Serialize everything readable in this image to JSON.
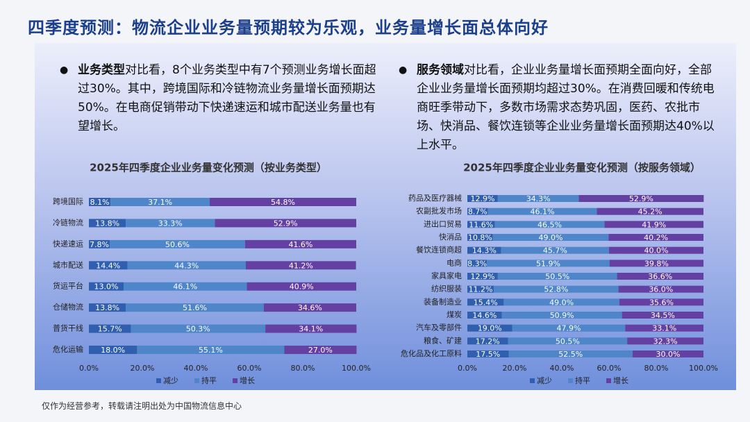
{
  "header": {
    "title": "四季度预测：物流企业业务量预期较为乐观，业务量增长面总体向好"
  },
  "bullets": [
    {
      "bold": "业务类型",
      "text": "对比看，8个业务类型中有7个预测业务增长面超过30%。其中，跨境国际和冷链物流业务量增长面预期达50%。在电商促销带动下快递速运和城市配送业务量也有望增长。"
    },
    {
      "bold": "服务领域",
      "text": "对比看，企业业务量增长面预期全面向好，全部企业业务量增长面预期均超过30%。在消费回暖和传统电商旺季带动下，多数市场需求态势巩固，医药、农批市场、快消品、餐饮连锁等企业业务量增长面预期达40%以上水平。"
    }
  ],
  "footer": "仅作为经营参考，转载请注明出处为中国物流信息中心",
  "chart_data": [
    {
      "type": "stacked-barh",
      "title": "2025年四季度企业业务量变化预测（按业务类型）",
      "categories": [
        "跨境国际",
        "冷链物流",
        "快递速运",
        "城市配送",
        "货运平台",
        "仓储物流",
        "普货干线",
        "危化运输"
      ],
      "series": [
        {
          "name": "减少",
          "color": "#2f5fae",
          "values": [
            8.1,
            13.8,
            7.8,
            14.4,
            13.0,
            13.8,
            15.7,
            18.0
          ],
          "value_labels": [
            "8.1%",
            "13.8%",
            "7.8%",
            "14.4%",
            "13.0%",
            "13.8%",
            "15.7%",
            "18.0%"
          ]
        },
        {
          "name": "持平",
          "color": "#4f86c9",
          "values": [
            37.1,
            33.3,
            50.6,
            44.3,
            46.1,
            51.6,
            50.3,
            55.1
          ],
          "value_labels": [
            "37.1%",
            "33.3%",
            "50.6%",
            "44.3%",
            "46.1%",
            "51.6%",
            "50.3%",
            "55.1%"
          ]
        },
        {
          "name": "增长",
          "color": "#6540a3",
          "values": [
            54.8,
            52.9,
            41.6,
            41.2,
            40.9,
            34.6,
            34.1,
            27.0
          ],
          "value_labels": [
            "54.8%",
            "52.9%",
            "41.6%",
            "41.2%",
            "40.9%",
            "34.6%",
            "34.1%",
            "27.0%"
          ]
        }
      ],
      "xlim": [
        0,
        100
      ],
      "xticks": [
        {
          "value": 0,
          "label": "0.0%"
        },
        {
          "value": 20,
          "label": "20.0%"
        },
        {
          "value": 40,
          "label": "40.0%"
        },
        {
          "value": 60,
          "label": "60.0%"
        },
        {
          "value": 80,
          "label": "80.0%"
        },
        {
          "value": 100,
          "label": "100.0%"
        }
      ]
    },
    {
      "type": "stacked-barh",
      "title": "2025年四季度企业业务量变化预测（按服务领域）",
      "categories": [
        "药品及医疗器械",
        "农副批发市场",
        "进出口贸易",
        "快消品",
        "餐饮连锁商超",
        "电商",
        "家具家电",
        "纺织服装",
        "装备制造业",
        "煤炭",
        "汽车及零部件",
        "粮食、矿建",
        "危化品及化工原料"
      ],
      "series": [
        {
          "name": "减少",
          "color": "#2f5fae",
          "values": [
            12.9,
            8.7,
            11.6,
            10.8,
            14.3,
            8.3,
            12.9,
            11.2,
            15.4,
            14.6,
            19.0,
            17.2,
            17.5
          ],
          "value_labels": [
            "12.9%",
            "8.7%",
            "11.6%",
            "10.8%",
            "14.3%",
            "8.3%",
            "12.9%",
            "11.2%",
            "15.4%",
            "14.6%",
            "19.0%",
            "17.2%",
            "17.5%"
          ]
        },
        {
          "name": "持平",
          "color": "#4f86c9",
          "values": [
            34.3,
            46.1,
            46.5,
            49.0,
            45.7,
            51.9,
            50.5,
            52.8,
            49.0,
            50.9,
            47.9,
            50.5,
            52.5
          ],
          "value_labels": [
            "34.3%",
            "46.1%",
            "46.5%",
            "49.0%",
            "45.7%",
            "51.9%",
            "50.5%",
            "52.8%",
            "49.0%",
            "50.9%",
            "47.9%",
            "50.5%",
            "52.5%"
          ]
        },
        {
          "name": "增长",
          "color": "#6540a3",
          "values": [
            52.9,
            45.2,
            41.9,
            40.2,
            40.0,
            39.8,
            36.6,
            36.0,
            35.6,
            34.5,
            33.1,
            32.3,
            30.0
          ],
          "value_labels": [
            "52.9%",
            "45.2%",
            "41.9%",
            "40.2%",
            "40.0%",
            "39.8%",
            "36.6%",
            "36.0%",
            "35.6%",
            "34.5%",
            "33.1%",
            "32.3%",
            "30.0%"
          ]
        }
      ],
      "xlim": [
        0,
        100
      ],
      "xticks": [
        {
          "value": 0,
          "label": "0.0%"
        },
        {
          "value": 20,
          "label": "20.0%"
        },
        {
          "value": 40,
          "label": "40.0%"
        },
        {
          "value": 60,
          "label": "60.0%"
        },
        {
          "value": 80,
          "label": "80.0%"
        },
        {
          "value": 100,
          "label": "100.0%"
        }
      ]
    }
  ]
}
